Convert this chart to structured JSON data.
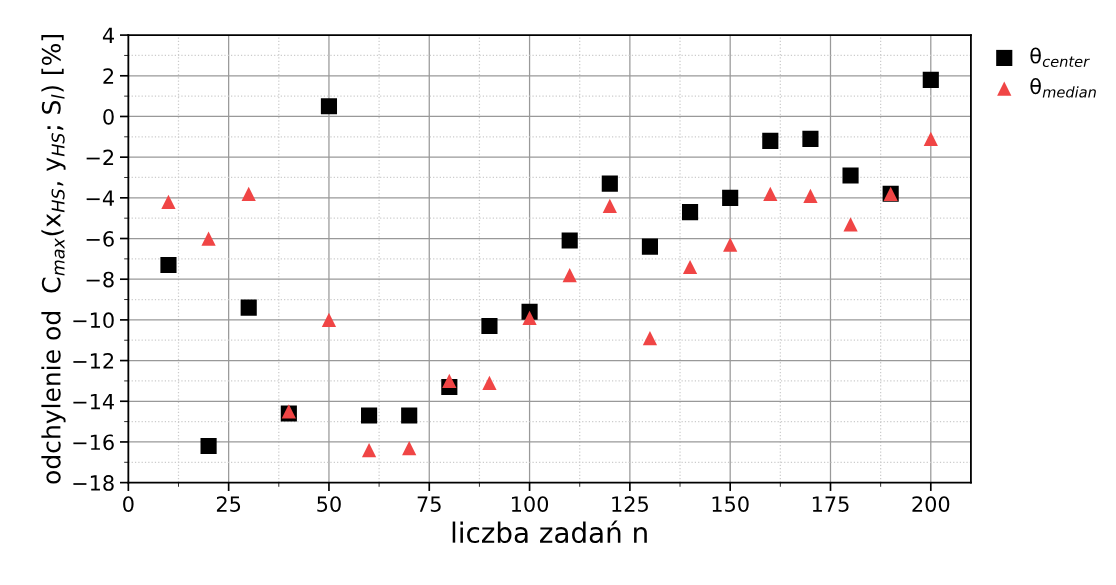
{
  "chart_data": {
    "type": "scatter",
    "xlabel": "liczba zadań n",
    "ylabel": "odchylenie od  C$_{max}$(x$_{HS}$, y$_{HS}$; S$_{l}$) [%]",
    "x": [
      10,
      20,
      30,
      40,
      50,
      60,
      70,
      80,
      90,
      100,
      110,
      120,
      130,
      140,
      150,
      160,
      170,
      180,
      190,
      200
    ],
    "series": [
      {
        "name": "θ$_{center}$",
        "color": "#000000",
        "marker": "square",
        "values": [
          -7.3,
          -16.2,
          -9.4,
          -14.6,
          0.5,
          -14.7,
          -14.7,
          -13.3,
          -10.3,
          -9.6,
          -6.1,
          -3.3,
          -6.4,
          -4.7,
          -4.0,
          -1.2,
          -1.1,
          -2.9,
          -3.8,
          1.8
        ]
      },
      {
        "name": "θ$_{median}$",
        "color": "#f04545",
        "marker": "triangle",
        "values": [
          -4.2,
          -6.0,
          -3.8,
          -14.5,
          -10.0,
          -16.4,
          -16.3,
          -13.0,
          -13.1,
          -9.9,
          -7.8,
          -4.4,
          -10.9,
          -7.4,
          -6.3,
          -3.8,
          -3.9,
          -5.3,
          -3.8,
          -1.1
        ]
      }
    ],
    "xlim": [
      0,
      210
    ],
    "xticks": [
      0,
      25,
      50,
      75,
      100,
      125,
      150,
      175,
      200
    ],
    "ylim": [
      -18,
      4
    ],
    "yticks": [
      -18,
      -16,
      -14,
      -12,
      -10,
      -8,
      -6,
      -4,
      -2,
      0,
      2,
      4
    ],
    "grid": true,
    "legend": "top right"
  }
}
